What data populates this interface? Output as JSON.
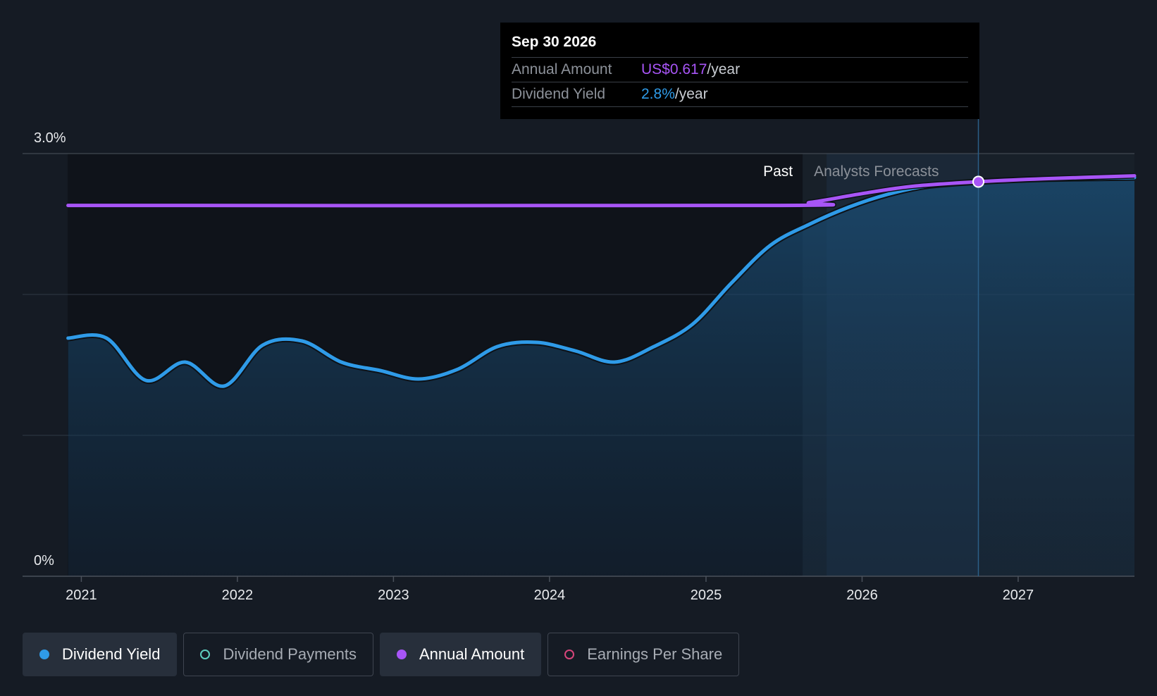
{
  "chart_data": {
    "type": "line",
    "x_range": [
      "2020-11-30",
      "2027-09-30"
    ],
    "forecast_start": "2025-08-15",
    "ylim": [
      0,
      3.0
    ],
    "y_ticks": [
      {
        "value": 3.0,
        "label": "3.0%"
      },
      {
        "value": 0,
        "label": "0%"
      }
    ],
    "x_ticks": [
      {
        "date": "2021-01-01",
        "label": "2021"
      },
      {
        "date": "2022-01-01",
        "label": "2022"
      },
      {
        "date": "2023-01-01",
        "label": "2023"
      },
      {
        "date": "2024-01-01",
        "label": "2024"
      },
      {
        "date": "2025-01-01",
        "label": "2025"
      },
      {
        "date": "2026-01-01",
        "label": "2026"
      },
      {
        "date": "2027-01-01",
        "label": "2027"
      }
    ],
    "region_labels": {
      "past": "Past",
      "forecast": "Analysts Forecasts"
    },
    "series": [
      {
        "name": "Dividend Yield",
        "color": "#2f9be8",
        "unit": "%",
        "points": [
          [
            "2020-12-01",
            1.69
          ],
          [
            "2021-03-01",
            1.69
          ],
          [
            "2021-06-01",
            1.39
          ],
          [
            "2021-09-01",
            1.52
          ],
          [
            "2021-12-01",
            1.35
          ],
          [
            "2022-03-01",
            1.64
          ],
          [
            "2022-06-01",
            1.67
          ],
          [
            "2022-09-01",
            1.52
          ],
          [
            "2022-12-01",
            1.46
          ],
          [
            "2023-03-01",
            1.4
          ],
          [
            "2023-06-01",
            1.47
          ],
          [
            "2023-09-01",
            1.63
          ],
          [
            "2023-12-01",
            1.66
          ],
          [
            "2024-03-01",
            1.6
          ],
          [
            "2024-06-01",
            1.52
          ],
          [
            "2024-09-01",
            1.63
          ],
          [
            "2024-12-01",
            1.79
          ],
          [
            "2025-03-01",
            2.08
          ],
          [
            "2025-06-01",
            2.35
          ],
          [
            "2025-09-01",
            2.5
          ],
          [
            "2025-12-01",
            2.62
          ],
          [
            "2026-03-01",
            2.71
          ],
          [
            "2026-06-01",
            2.77
          ],
          [
            "2026-09-30",
            2.8
          ],
          [
            "2027-03-01",
            2.82
          ],
          [
            "2027-09-30",
            2.83
          ]
        ]
      },
      {
        "name": "Annual Amount",
        "color": "#a855f7",
        "unit": "US$/year",
        "points": [
          [
            "2020-12-01",
            0.601
          ],
          [
            "2025-06-01",
            0.601
          ],
          [
            "2025-09-01",
            0.603
          ],
          [
            "2026-01-01",
            0.609
          ],
          [
            "2026-05-01",
            0.614
          ],
          [
            "2026-09-30",
            0.617
          ],
          [
            "2027-03-01",
            0.619
          ],
          [
            "2027-09-30",
            0.621
          ]
        ]
      }
    ],
    "highlight": {
      "date": "2026-09-30",
      "label": "Sep 30 2026",
      "rows": [
        {
          "label": "Annual Amount",
          "value": "US$0.617",
          "unit": "/year"
        },
        {
          "label": "Dividend Yield",
          "value": "2.8%",
          "unit": "/year"
        }
      ]
    },
    "legend": [
      {
        "label": "Dividend Yield",
        "color": "#2f9be8",
        "active": true,
        "filled": true
      },
      {
        "label": "Dividend Payments",
        "color": "#5fcfc0",
        "active": false,
        "filled": false
      },
      {
        "label": "Annual Amount",
        "color": "#a855f7",
        "active": true,
        "filled": true
      },
      {
        "label": "Earnings Per Share",
        "color": "#d6457a",
        "active": false,
        "filled": false
      }
    ]
  }
}
